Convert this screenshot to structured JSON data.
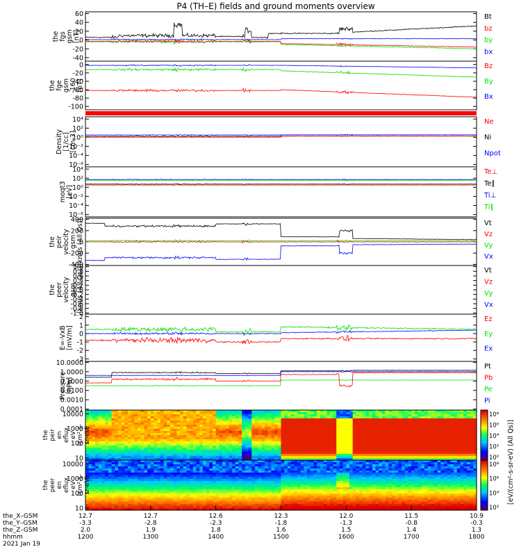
{
  "title": "P4 (TH–E) fields and ground moments overview",
  "colors": {
    "black": "#000000",
    "red": "#ff0000",
    "green": "#00e000",
    "blue": "#0000ff"
  },
  "panels": [
    {
      "id": "fgs",
      "ylabel": [
        "the",
        "fgs",
        "gsm",
        "[nT]"
      ],
      "ticks": [
        "60",
        "40",
        "20",
        "0",
        "-20",
        "-40"
      ],
      "legend": [
        {
          "label": "Bt",
          "color": "black"
        },
        {
          "label": "bz",
          "color": "red"
        },
        {
          "label": "by",
          "color": "green"
        },
        {
          "label": "bx",
          "color": "blue"
        }
      ]
    },
    {
      "id": "fge",
      "ylabel": [
        "the",
        "fge",
        "gsm",
        "-160",
        "[nT]"
      ],
      "ticks": [
        "0",
        "-20",
        "-40",
        "-60",
        "-80",
        "-100"
      ],
      "legend": [
        {
          "label": "Bz",
          "color": "red"
        },
        {
          "label": "By",
          "color": "green"
        },
        {
          "label": "Bx",
          "color": "blue"
        }
      ]
    },
    {
      "id": "density",
      "ylabel": [
        "Density",
        "[1/cc]",
        "[cm-3]"
      ],
      "ticks": [
        "10⁴",
        "10²",
        "10⁰",
        "10⁻²",
        "10⁻⁴",
        "10⁻⁶"
      ],
      "legend": [
        {
          "label": "Ne",
          "color": "red"
        },
        {
          "label": "Ni",
          "color": "black"
        },
        {
          "label": "Npot",
          "color": "blue"
        }
      ]
    },
    {
      "id": "temp",
      "ylabel": [
        "moqt3",
        "[eV]"
      ],
      "ticks": [
        "10⁴",
        "10²",
        "10⁰",
        "10⁻²",
        "10⁻⁴",
        "10⁻⁶"
      ],
      "legend": [
        {
          "label": "Te⊥",
          "color": "red"
        },
        {
          "label": "Te∥",
          "color": "black"
        },
        {
          "label": "Ti⊥",
          "color": "blue"
        },
        {
          "label": "Ti∥",
          "color": "green"
        }
      ]
    },
    {
      "id": "peir",
      "ylabel": [
        "the",
        "peir",
        "velocity",
        "gsm",
        "[km/s (All Qs)]"
      ],
      "ticks": [
        "400",
        "200",
        "0",
        "-200",
        "-400"
      ],
      "legend": [
        {
          "label": "Vt",
          "color": "black"
        },
        {
          "label": "Vz",
          "color": "red"
        },
        {
          "label": "Vy",
          "color": "green"
        },
        {
          "label": "Vx",
          "color": "blue"
        }
      ]
    },
    {
      "id": "peer",
      "ylabel": [
        "the",
        "peer",
        "velocity",
        "gsm",
        "[km/s (All Qs)]"
      ],
      "ticks": [
        "1.0",
        "0.8",
        "0.6",
        "0.4",
        "0.2",
        "0.0",
        "-0.2",
        "-0.4",
        "-0.6",
        "-0.8",
        "-1.0"
      ],
      "legend": [
        {
          "label": "Vt",
          "color": "black"
        },
        {
          "label": "Vz",
          "color": "red"
        },
        {
          "label": "Vy",
          "color": "green"
        },
        {
          "label": "Vx",
          "color": "blue"
        }
      ]
    },
    {
      "id": "efield",
      "ylabel": [
        "E=-VxB",
        "[mV/m]"
      ],
      "ticks": [
        "2",
        "1",
        "0",
        "-1",
        "-2",
        "-3"
      ],
      "legend": [
        {
          "label": "Ez",
          "color": "red"
        },
        {
          "label": "Ey",
          "color": "green"
        },
        {
          "label": "Ex",
          "color": "blue"
        }
      ]
    },
    {
      "id": "pressure",
      "ylabel": [
        "Pressure",
        "[nPa]"
      ],
      "ticks": [
        "10.0000",
        "1.0000",
        "0.1000",
        "0.0100",
        "0.0010",
        "0.0001"
      ],
      "legend": [
        {
          "label": "Pt",
          "color": "black"
        },
        {
          "label": "Pb",
          "color": "red"
        },
        {
          "label": "Pe",
          "color": "green"
        },
        {
          "label": "Pi",
          "color": "blue"
        }
      ]
    },
    {
      "id": "peir_spec",
      "ylabel": [
        "the",
        "peir",
        "en",
        "eflux",
        "eV",
        "(cm²-s-",
        "sr-eV)"
      ],
      "ticks": [
        "10000",
        "1000",
        "100",
        "10"
      ],
      "colorbar": [
        "10⁸",
        "10⁶",
        "10⁴",
        "10²",
        "10⁰"
      ]
    },
    {
      "id": "peer_spec",
      "ylabel": [
        "the",
        "peer",
        "en",
        "eflux",
        "eV",
        "(cm²-s-",
        "sr-eV)"
      ],
      "ticks": [
        "10000",
        "1000",
        "100",
        "10"
      ],
      "colorbar": [
        "10⁸",
        "10⁶",
        "10⁴",
        "10²"
      ]
    }
  ],
  "colorbar_label": "[eV/(cm²-s-sr-eV) (All Qs)]",
  "xaxis": {
    "rows": [
      {
        "label": "the_X–GSM",
        "values": [
          "12.7",
          "12.7",
          "12.6",
          "12.3",
          "12.0",
          "11.5",
          "10.9"
        ]
      },
      {
        "label": "the_Y–GSM",
        "values": [
          "-3.3",
          "-2.8",
          "-2.3",
          "-1.8",
          "-1.3",
          "-0.8",
          "-0.3"
        ]
      },
      {
        "label": "the_Z–GSM",
        "values": [
          "2.0",
          "1.9",
          "1.8",
          "1.6",
          "1.5",
          "1.4",
          "1.3"
        ]
      },
      {
        "label": "hhmm",
        "values": [
          "1200",
          "1300",
          "1400",
          "1500",
          "1600",
          "1700",
          "1800"
        ]
      }
    ],
    "date": "2021 Jan 19"
  },
  "chart_data": {
    "type": "line",
    "title": "P4 (TH–E) fields and ground moments overview",
    "x_label": "hhmm",
    "x": [
      "1200",
      "1300",
      "1400",
      "1500",
      "1600",
      "1700",
      "1800"
    ],
    "panels": [
      {
        "name": "fgs gsm [nT]",
        "ylim": [
          -40,
          60
        ],
        "series": [
          {
            "name": "Bt",
            "values": [
              5,
              20,
              8,
              18,
              18,
              28,
              32
            ]
          },
          {
            "name": "bz",
            "values": [
              -3,
              -5,
              -10,
              -12,
              -10,
              -15,
              -18
            ]
          },
          {
            "name": "by",
            "values": [
              0,
              -5,
              -3,
              -8,
              -12,
              -18,
              -20
            ]
          },
          {
            "name": "bx",
            "values": [
              0,
              2,
              1,
              3,
              4,
              3,
              2
            ]
          }
        ]
      },
      {
        "name": "fge gsm -160 [nT]",
        "ylim": [
          -100,
          0
        ],
        "series": [
          {
            "name": "Bz",
            "values": [
              -60,
              -60,
              -55,
              -58,
              -60,
              -65,
              -75
            ]
          },
          {
            "name": "By",
            "values": [
              -12,
              -15,
              -10,
              -20,
              -18,
              -25,
              -30
            ]
          },
          {
            "name": "Bx",
            "values": [
              -2,
              -5,
              -3,
              -5,
              -8,
              -10,
              -8
            ]
          }
        ]
      },
      {
        "name": "Density [1/cc]",
        "ylim": [
          "1e-6",
          "1e4"
        ],
        "scale": "log",
        "series": [
          {
            "name": "Ne",
            "values": [
              1,
              1,
              1,
              1,
              1,
              1,
              1
            ]
          },
          {
            "name": "Ni",
            "values": [
              1,
              1,
              1,
              1,
              1,
              1,
              1
            ]
          }
        ]
      },
      {
        "name": "peir velocity gsm [km/s]",
        "ylim": [
          -400,
          400
        ],
        "series": [
          {
            "name": "Vt",
            "values": [
              300,
              280,
              250,
              80,
              120,
              50,
              40
            ]
          },
          {
            "name": "Vz",
            "values": [
              0,
              20,
              -30,
              10,
              -20,
              5,
              0
            ]
          },
          {
            "name": "Vy",
            "values": [
              20,
              0,
              -20,
              10,
              0,
              -10,
              -10
            ]
          },
          {
            "name": "Vx",
            "values": [
              -300,
              -280,
              -250,
              -60,
              -100,
              -40,
              -30
            ]
          }
        ]
      },
      {
        "name": "E=-VxB [mV/m]",
        "ylim": [
          -3,
          2
        ],
        "series": [
          {
            "name": "Ez",
            "values": [
              -1,
              -0.5,
              -0.8,
              -1,
              -0.5,
              -0.6,
              -0.5
            ]
          },
          {
            "name": "Ey",
            "values": [
              0.2,
              0.5,
              0,
              0.8,
              0.6,
              0.5,
              0.4
            ]
          },
          {
            "name": "Ex",
            "values": [
              0,
              0.1,
              -0.1,
              0,
              0,
              0.1,
              0.2
            ]
          }
        ]
      },
      {
        "name": "Pressure [nPa]",
        "ylim": [
          "1e-4",
          "1e1"
        ],
        "scale": "log",
        "series": [
          {
            "name": "Pt",
            "values": [
              0.4,
              1,
              0.8,
              1.5,
              1.6,
              1.8,
              2
            ]
          },
          {
            "name": "Pb",
            "values": [
              0.2,
              0.1,
              0.1,
              0.5,
              0.6,
              0.8,
              1
            ]
          },
          {
            "name": "Pe",
            "values": [
              0.05,
              0.03,
              0.04,
              0.15,
              0.15,
              0.15,
              0.15
            ]
          }
        ]
      }
    ]
  }
}
